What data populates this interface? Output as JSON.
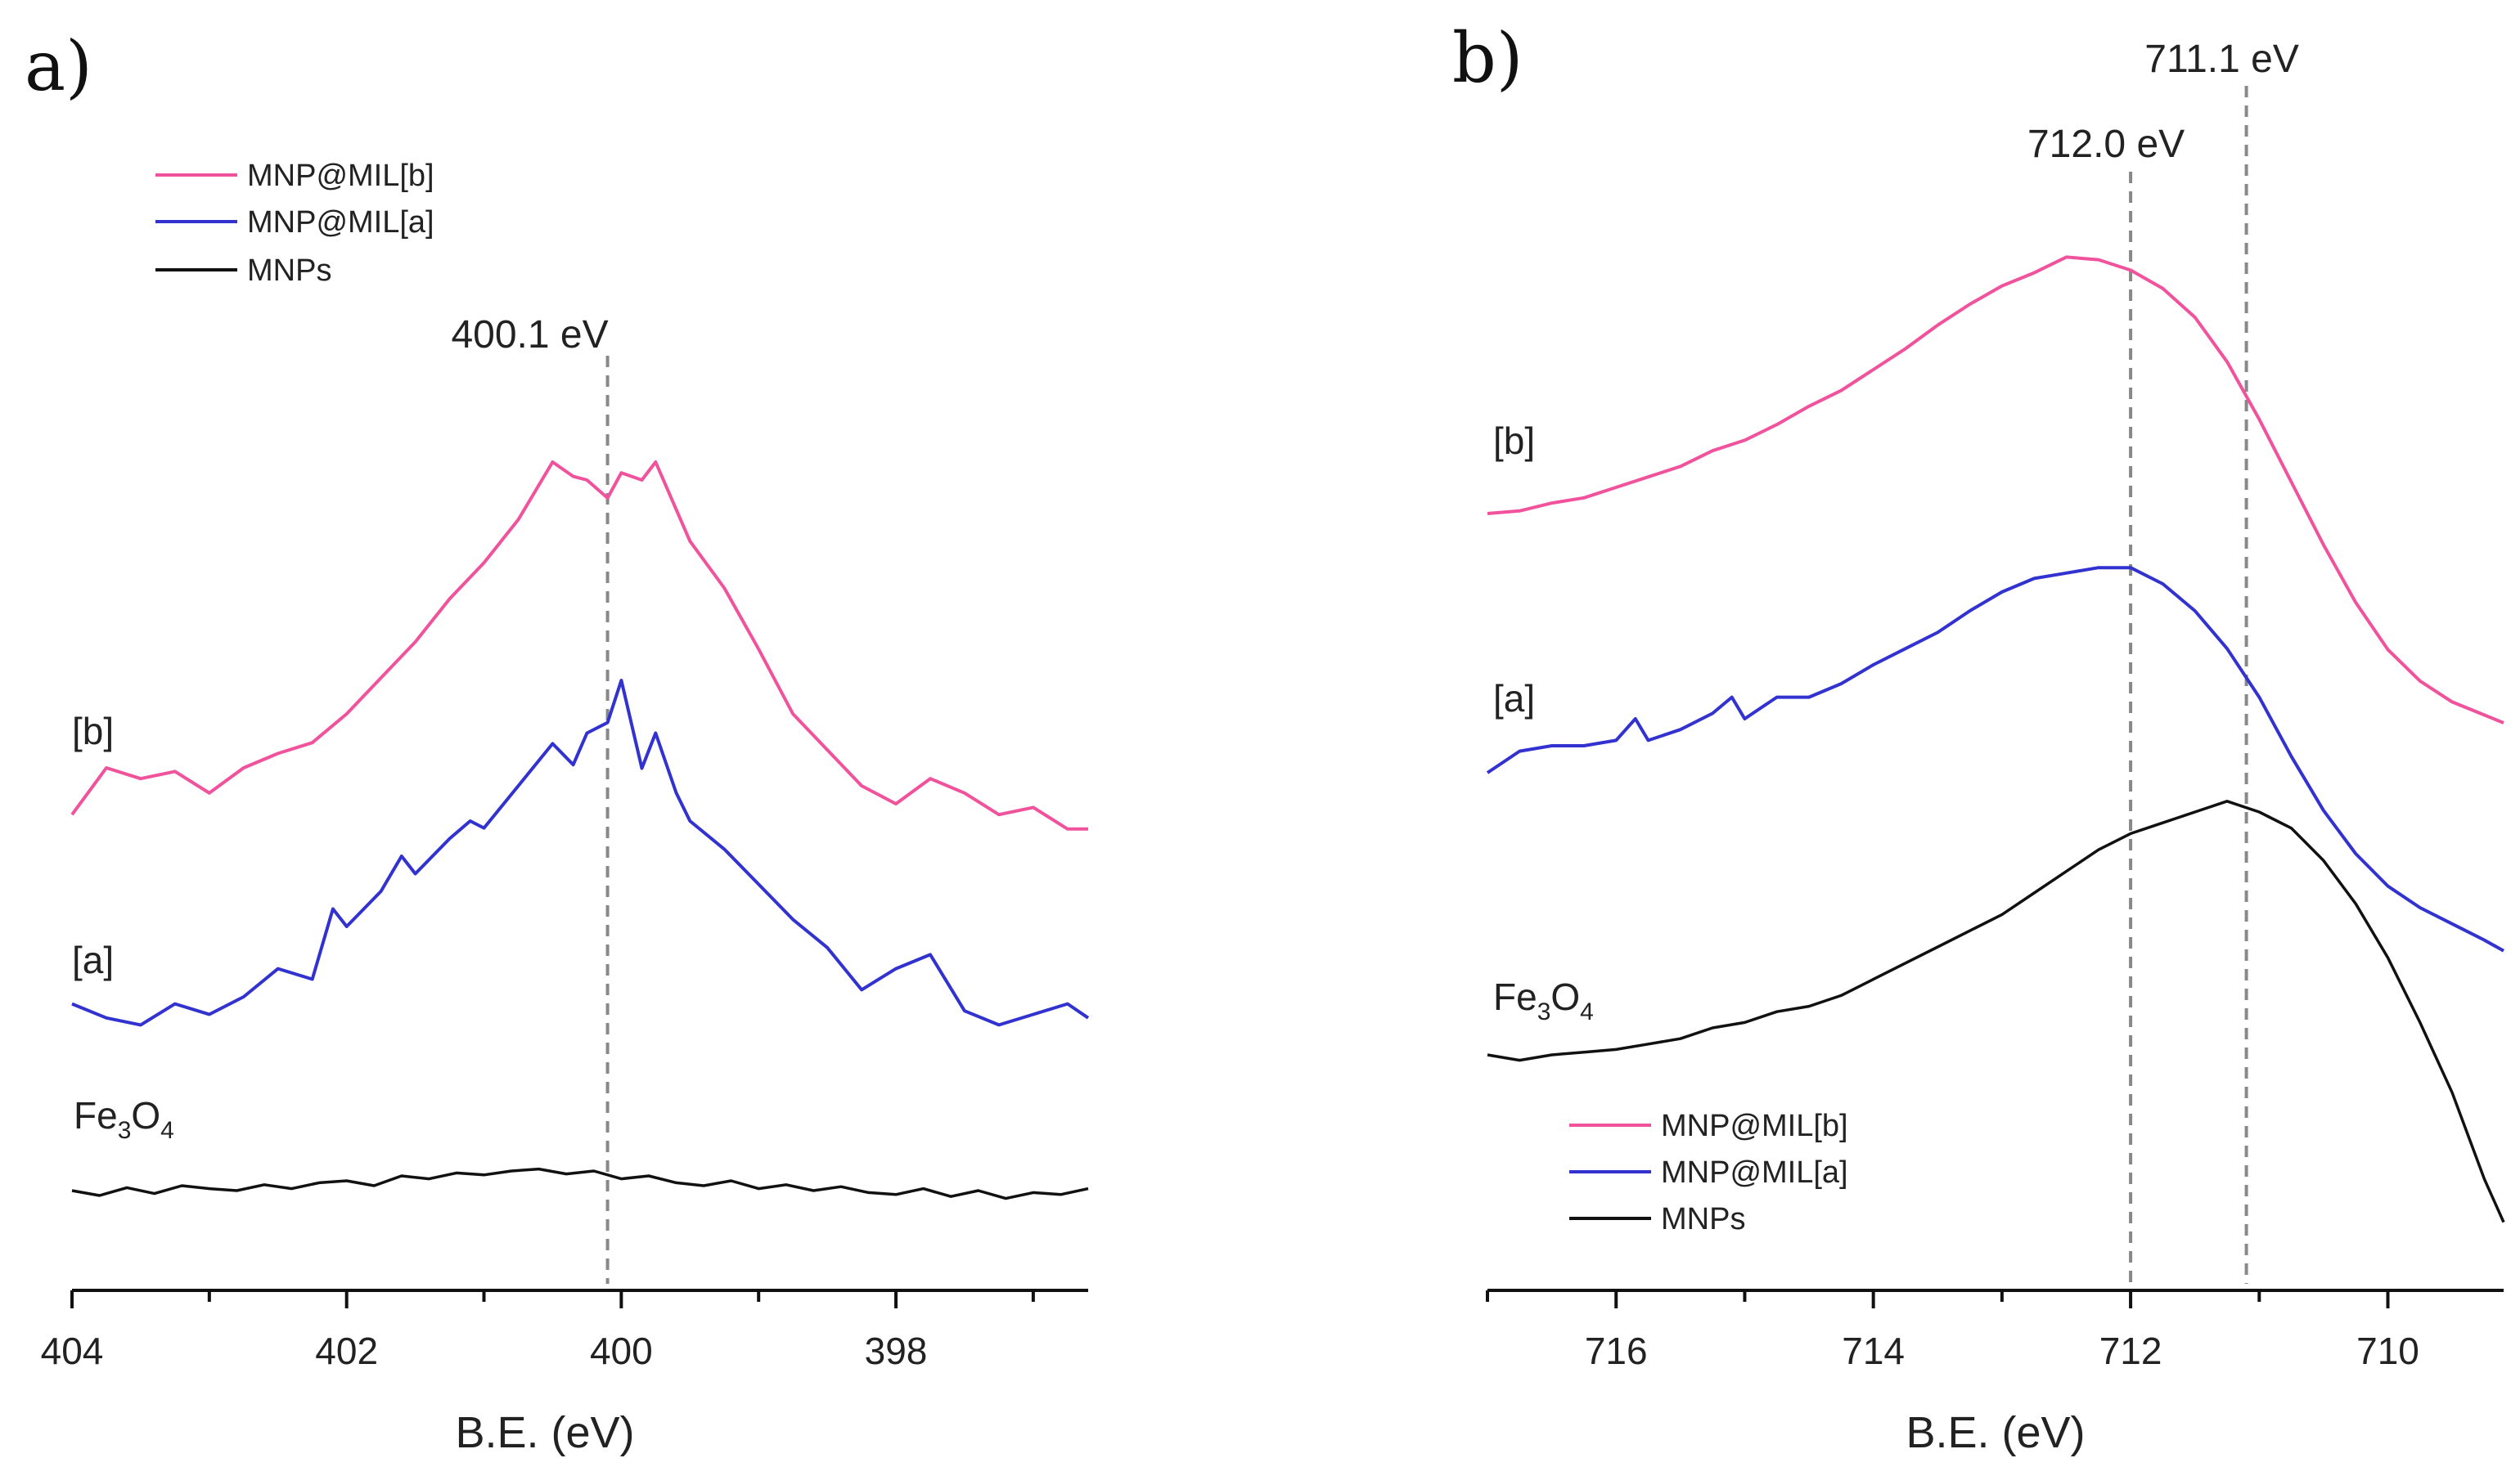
{
  "chart_data": [
    {
      "type": "line",
      "panel_label": "a)",
      "xlabel": "B.E. (eV)",
      "ylabel": "",
      "x_reversed": true,
      "xlim": [
        404,
        396.6
      ],
      "xticks": [
        404,
        402,
        400,
        398
      ],
      "minor_ticks": [
        403,
        401,
        399,
        397
      ],
      "annotation": {
        "x": 400.1,
        "label": "400.1 eV"
      },
      "legend": [
        "MNP@MIL[b]",
        "MNP@MIL[a]",
        "MNPs"
      ],
      "legend_position": "top-left",
      "series": [
        {
          "name": "MNP@MIL[b]",
          "label": "[b]",
          "color": "#f0529c",
          "x": [
            404,
            403.75,
            403.5,
            403.25,
            403,
            402.75,
            402.5,
            402.25,
            402,
            401.75,
            401.5,
            401.25,
            401,
            400.75,
            400.5,
            400.35,
            400.25,
            400.1,
            400,
            399.85,
            399.75,
            399.5,
            399.25,
            399,
            398.75,
            398.5,
            398.25,
            398,
            397.75,
            397.5,
            397.25,
            397,
            396.75,
            396.6
          ],
          "y": [
            0.02,
            0.15,
            0.12,
            0.14,
            0.08,
            0.15,
            0.19,
            0.22,
            0.3,
            0.4,
            0.5,
            0.62,
            0.72,
            0.84,
            1.0,
            0.96,
            0.95,
            0.9,
            0.97,
            0.95,
            1.0,
            0.78,
            0.65,
            0.48,
            0.3,
            0.2,
            0.1,
            0.05,
            0.12,
            0.08,
            0.02,
            0.04,
            -0.02,
            -0.02
          ]
        },
        {
          "name": "MNP@MIL[a]",
          "label": "[a]",
          "color": "#3232d0",
          "x": [
            404,
            403.75,
            403.5,
            403.25,
            403,
            402.75,
            402.5,
            402.25,
            402.1,
            402,
            401.75,
            401.6,
            401.5,
            401.25,
            401.1,
            401,
            400.75,
            400.5,
            400.35,
            400.25,
            400.1,
            400,
            399.85,
            399.75,
            399.6,
            399.5,
            399.25,
            399,
            398.75,
            398.5,
            398.25,
            398,
            397.75,
            397.5,
            397.25,
            397,
            396.75,
            396.6
          ],
          "y": [
            0.08,
            0.04,
            0.02,
            0.08,
            0.05,
            0.1,
            0.18,
            0.15,
            0.35,
            0.3,
            0.4,
            0.5,
            0.45,
            0.55,
            0.6,
            0.58,
            0.7,
            0.82,
            0.76,
            0.85,
            0.88,
            1.0,
            0.75,
            0.85,
            0.68,
            0.6,
            0.52,
            0.42,
            0.32,
            0.24,
            0.12,
            0.18,
            0.22,
            0.06,
            0.02,
            0.05,
            0.08,
            0.04
          ]
        },
        {
          "name": "MNPs",
          "label": "Fe3O4",
          "color": "#111111",
          "x": [
            404,
            403.8,
            403.6,
            403.4,
            403.2,
            403,
            402.8,
            402.6,
            402.4,
            402.2,
            402,
            401.8,
            401.6,
            401.4,
            401.2,
            401,
            400.8,
            400.6,
            400.4,
            400.2,
            400,
            399.8,
            399.6,
            399.4,
            399.2,
            399,
            398.8,
            398.6,
            398.4,
            398.2,
            398,
            397.8,
            397.6,
            397.4,
            397.2,
            397,
            396.8,
            396.6
          ],
          "y": [
            0.1,
            0.05,
            0.13,
            0.07,
            0.15,
            0.12,
            0.1,
            0.16,
            0.12,
            0.18,
            0.2,
            0.15,
            0.25,
            0.22,
            0.28,
            0.26,
            0.3,
            0.32,
            0.27,
            0.3,
            0.22,
            0.25,
            0.18,
            0.15,
            0.2,
            0.12,
            0.16,
            0.1,
            0.14,
            0.08,
            0.06,
            0.12,
            0.04,
            0.1,
            0.02,
            0.08,
            0.06,
            0.12
          ]
        }
      ]
    },
    {
      "type": "line",
      "panel_label": "b)",
      "xlabel": "B.E. (eV)",
      "ylabel": "",
      "x_reversed": true,
      "xlim": [
        717,
        709.1
      ],
      "xticks": [
        716,
        714,
        712,
        710
      ],
      "minor_ticks": [
        717,
        715,
        713,
        711
      ],
      "annotations": [
        {
          "x": 712.0,
          "label": "712.0 eV"
        },
        {
          "x": 711.1,
          "label": "711.1 eV"
        }
      ],
      "legend": [
        "MNP@MIL[b]",
        "MNP@MIL[a]",
        "MNPs"
      ],
      "legend_position": "bottom-left",
      "series": [
        {
          "name": "MNP@MIL[b]",
          "label": "[b]",
          "color": "#f0529c",
          "x": [
            717,
            716.75,
            716.5,
            716.25,
            716,
            715.75,
            715.5,
            715.25,
            715,
            714.75,
            714.5,
            714.25,
            714,
            713.75,
            713.5,
            713.25,
            713,
            712.75,
            712.5,
            712.25,
            712,
            711.75,
            711.5,
            711.25,
            711,
            710.75,
            710.5,
            710.25,
            710,
            709.75,
            709.5,
            709.25,
            709.1
          ],
          "y": [
            0.0,
            0.01,
            0.04,
            0.06,
            0.1,
            0.14,
            0.18,
            0.24,
            0.28,
            0.34,
            0.41,
            0.47,
            0.55,
            0.63,
            0.72,
            0.8,
            0.87,
            0.92,
            0.98,
            0.97,
            0.93,
            0.86,
            0.75,
            0.58,
            0.36,
            0.12,
            -0.12,
            -0.34,
            -0.52,
            -0.64,
            -0.72,
            -0.77,
            -0.8
          ]
        },
        {
          "name": "MNP@MIL[a]",
          "label": "[a]",
          "color": "#3232d0",
          "x": [
            717,
            716.75,
            716.5,
            716.25,
            716,
            715.85,
            715.75,
            715.5,
            715.25,
            715.1,
            715,
            714.75,
            714.5,
            714.25,
            714,
            713.75,
            713.5,
            713.25,
            713,
            712.75,
            712.5,
            712.25,
            712,
            711.75,
            711.5,
            711.25,
            711,
            710.75,
            710.5,
            710.25,
            710,
            709.75,
            709.5,
            709.25,
            709.1
          ],
          "y": [
            0.0,
            0.08,
            0.1,
            0.1,
            0.12,
            0.2,
            0.12,
            0.16,
            0.22,
            0.28,
            0.2,
            0.28,
            0.28,
            0.33,
            0.4,
            0.46,
            0.52,
            0.6,
            0.67,
            0.72,
            0.74,
            0.76,
            0.76,
            0.7,
            0.6,
            0.46,
            0.28,
            0.06,
            -0.14,
            -0.3,
            -0.42,
            -0.5,
            -0.56,
            -0.62,
            -0.66
          ]
        },
        {
          "name": "MNPs",
          "label": "Fe3O4",
          "color": "#111111",
          "x": [
            717,
            716.75,
            716.5,
            716.25,
            716,
            715.75,
            715.5,
            715.25,
            715,
            714.75,
            714.5,
            714.25,
            714,
            713.75,
            713.5,
            713.25,
            713,
            712.75,
            712.5,
            712.25,
            712,
            711.75,
            711.5,
            711.25,
            711,
            710.75,
            710.5,
            710.25,
            710,
            709.75,
            709.5,
            709.25,
            709.1
          ],
          "y": [
            0.0,
            -0.02,
            0.0,
            0.01,
            0.02,
            0.04,
            0.06,
            0.1,
            0.12,
            0.16,
            0.18,
            0.22,
            0.28,
            0.34,
            0.4,
            0.46,
            0.52,
            0.6,
            0.68,
            0.76,
            0.82,
            0.86,
            0.9,
            0.94,
            0.9,
            0.84,
            0.72,
            0.56,
            0.36,
            0.12,
            -0.14,
            -0.46,
            -0.62
          ]
        }
      ]
    }
  ]
}
